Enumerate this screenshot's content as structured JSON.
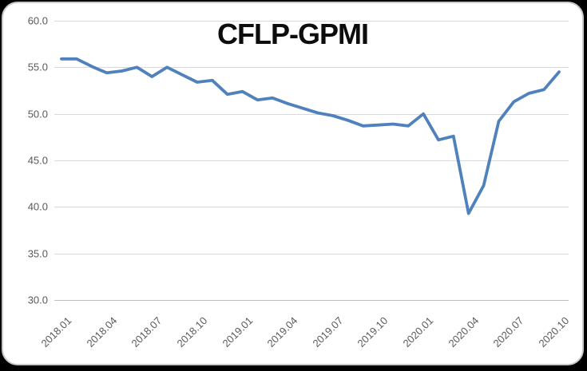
{
  "chart_data": {
    "type": "line",
    "title": "CFLP-GPMI",
    "xlabel": "",
    "ylabel": "",
    "ylim": [
      30.0,
      60.0
    ],
    "ytick_values": [
      60,
      55,
      50,
      45,
      40,
      35,
      30
    ],
    "ytick_labels": [
      "60.0",
      "55.0",
      "50.0",
      "45.0",
      "40.0",
      "35.0",
      "30.0"
    ],
    "x": [
      "2018.01",
      "2018.02",
      "2018.03",
      "2018.04",
      "2018.05",
      "2018.06",
      "2018.07",
      "2018.08",
      "2018.09",
      "2018.10",
      "2018.11",
      "2018.12",
      "2019.01",
      "2019.02",
      "2019.03",
      "2019.04",
      "2019.05",
      "2019.06",
      "2019.07",
      "2019.08",
      "2019.09",
      "2019.10",
      "2019.11",
      "2019.12",
      "2020.01",
      "2020.02",
      "2020.03",
      "2020.04",
      "2020.05",
      "2020.06",
      "2020.07",
      "2020.08",
      "2020.09",
      "2020.10"
    ],
    "x_tick_labels": [
      "2018.01",
      "2018.04",
      "2018.07",
      "2018.10",
      "2019.01",
      "2019.04",
      "2019.07",
      "2019.10",
      "2020.01",
      "2020.04",
      "2020.07",
      "2020.10"
    ],
    "series": [
      {
        "name": "CFLP-GPMI",
        "values": [
          55.9,
          55.9,
          55.1,
          54.4,
          54.6,
          55.0,
          54.0,
          55.0,
          54.2,
          53.4,
          53.6,
          52.1,
          52.4,
          51.5,
          51.7,
          51.1,
          50.6,
          50.1,
          49.8,
          49.3,
          48.7,
          48.8,
          48.9,
          48.7,
          50.0,
          47.2,
          47.6,
          39.3,
          42.3,
          49.2,
          51.3,
          52.2,
          52.6,
          54.5
        ]
      }
    ],
    "grid": "horizontal",
    "legend": "none",
    "colors": {
      "line": "#4F81BD",
      "gridline": "#D9D9D9",
      "axis_text": "#595959",
      "title_text": "#0D0D0D",
      "card_background": "#FFFFFF",
      "card_border": "#C9C9C9",
      "page_background": "#000000"
    }
  }
}
